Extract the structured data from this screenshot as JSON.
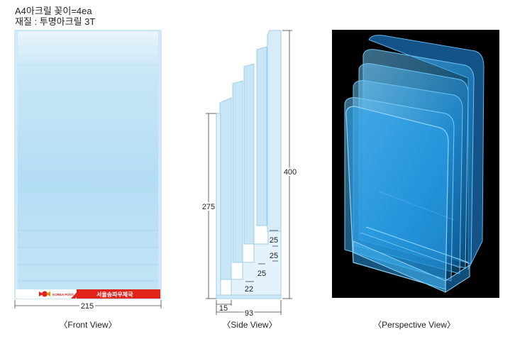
{
  "header": {
    "line1": "A4아크릴 꽂이=4ea",
    "line2": "재질 : 투명아크릴 3T"
  },
  "front_view": {
    "caption": "〈Front View〉",
    "width_dim": "215",
    "brand": {
      "logo_text": "KOREA POST",
      "label": "서울송파우체국"
    }
  },
  "side_view": {
    "caption": "〈Side View〉",
    "height_total": "400",
    "height_front": "275",
    "step_dims": [
      "25",
      "25",
      "25",
      "22"
    ],
    "depth_front": "15",
    "depth_total": "93"
  },
  "perspective_view": {
    "caption": "〈Perspective View〉"
  },
  "colors": {
    "acrylic_light": "#dff0f9",
    "acrylic_mid": "#b6def3",
    "acrylic_edge": "#8ec9e6",
    "brand_red": "#e2231a",
    "perspective_bg": "#000000",
    "perspective_blue": "#1e90d8"
  }
}
